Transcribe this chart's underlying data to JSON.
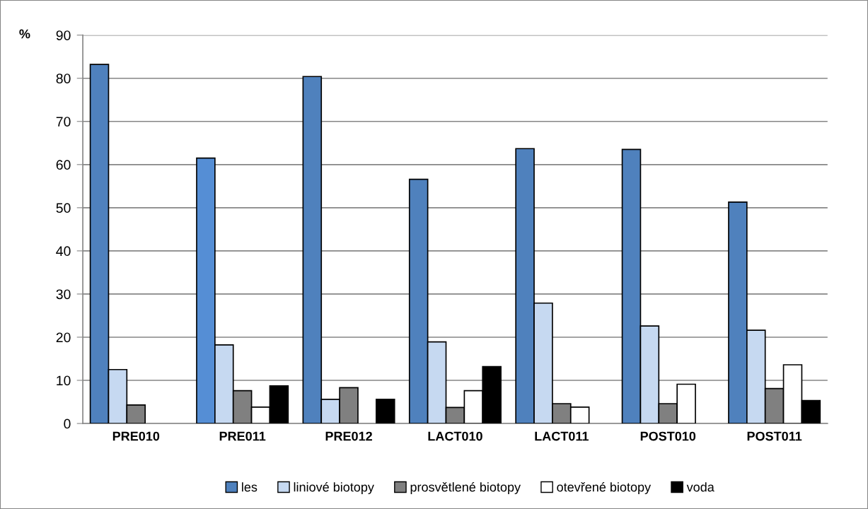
{
  "chart_data": {
    "type": "bar",
    "ylabel": "%",
    "categories": [
      "PRE010",
      "PRE011",
      "PRE012",
      "LACT010",
      "LACT011",
      "POST010",
      "POST011"
    ],
    "series": [
      {
        "name": "les",
        "color": "#4f81bd",
        "colors": [
          "#4f81bd",
          "#558ed5",
          "#4f81bd",
          "#4f81bd",
          "#4f81bd",
          "#4f81bd",
          "#4f81bd"
        ],
        "values": [
          83.2,
          61.5,
          80.4,
          56.6,
          63.7,
          63.5,
          51.3
        ]
      },
      {
        "name": "liniové biotopy",
        "color": "#c6d9f1",
        "values": [
          12.5,
          18.2,
          5.6,
          18.9,
          27.9,
          22.6,
          21.6
        ]
      },
      {
        "name": "prosvětlené biotopy",
        "color": "#808080",
        "values": [
          4.3,
          7.6,
          8.3,
          3.7,
          4.6,
          4.6,
          8.1
        ]
      },
      {
        "name": "otevřené biotopy",
        "color": "#ffffff",
        "values": [
          null,
          3.8,
          null,
          7.6,
          3.8,
          9.1,
          13.6
        ]
      },
      {
        "name": "voda",
        "color": "#000000",
        "values": [
          null,
          8.7,
          5.6,
          13.2,
          null,
          null,
          5.3
        ]
      }
    ],
    "ylim": [
      0,
      90
    ],
    "yticks": [
      0,
      10,
      20,
      30,
      40,
      50,
      60,
      70,
      80,
      90
    ],
    "grid": "y",
    "legend": "bottom"
  }
}
